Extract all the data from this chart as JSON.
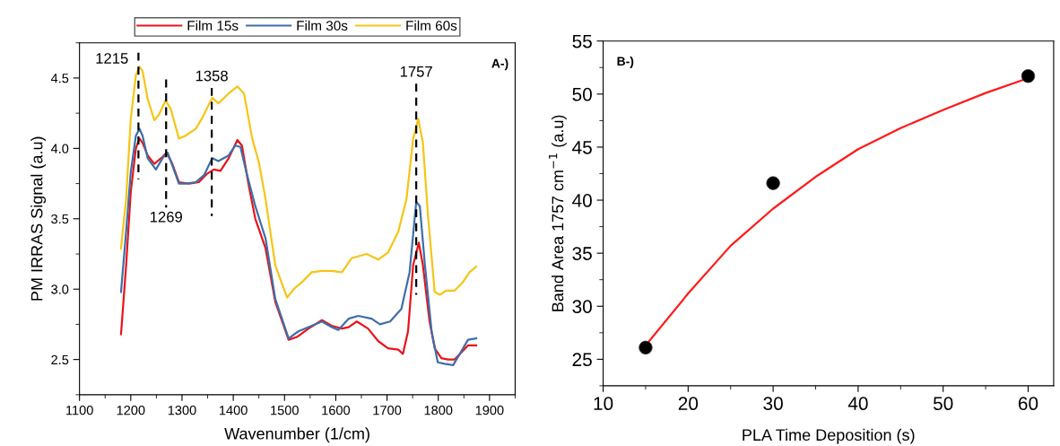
{
  "chart_data": [
    {
      "type": "line",
      "xlabel": "Wavenumber (1/cm)",
      "ylabel": "PM IRRAS Signal (a.u)",
      "xlim": [
        1100,
        1950
      ],
      "ylim": [
        2.25,
        4.75
      ],
      "xticks": [
        1100,
        1200,
        1300,
        1400,
        1500,
        1600,
        1700,
        1800,
        1900
      ],
      "yticks": [
        2.5,
        {
          "value": 3,
          "label": "3.0"
        },
        3.5,
        {
          "value": 4,
          "label": "4.0"
        },
        4.5
      ],
      "grid": false,
      "legend": "top",
      "marker": "none",
      "line_style": "solid",
      "annotations": [
        "A-)",
        {
          "text": "1215",
          "x": 1215,
          "y": 4.68
        },
        {
          "text": "1269",
          "x": 1269,
          "y": 3.58
        },
        {
          "text": "1358",
          "x": 1358,
          "y": 4.43
        },
        {
          "text": "1757",
          "x": 1757,
          "y": 4.46
        }
      ],
      "series": [
        {
          "name": "Film 15s",
          "color": "#e8141c",
          "x": [
            1181,
            1191,
            1200,
            1210,
            1217,
            1223,
            1233,
            1246,
            1262,
            1270,
            1281,
            1294,
            1314,
            1333,
            1349,
            1362,
            1375,
            1391,
            1408,
            1417,
            1430,
            1443,
            1463,
            1482,
            1508,
            1524,
            1547,
            1573,
            1592,
            1612,
            1625,
            1641,
            1663,
            1683,
            1702,
            1722,
            1731,
            1741,
            1751,
            1762,
            1770,
            1783,
            1793,
            1806,
            1819,
            1832,
            1845,
            1858,
            1874
          ],
          "values": [
            2.68,
            3.17,
            3.69,
            4.0,
            4.07,
            4.04,
            3.95,
            3.89,
            3.94,
            3.97,
            3.89,
            3.76,
            3.75,
            3.76,
            3.82,
            3.85,
            3.84,
            3.93,
            4.06,
            4.02,
            3.74,
            3.5,
            3.29,
            2.91,
            2.64,
            2.66,
            2.72,
            2.78,
            2.74,
            2.72,
            2.73,
            2.77,
            2.72,
            2.63,
            2.58,
            2.57,
            2.54,
            2.7,
            3.17,
            3.33,
            3.17,
            2.77,
            2.58,
            2.51,
            2.5,
            2.5,
            2.55,
            2.6,
            2.6
          ]
        },
        {
          "name": "Film 30s",
          "color": "#3e6fa8",
          "x": [
            1181,
            1191,
            1200,
            1210,
            1217,
            1223,
            1233,
            1249,
            1262,
            1272,
            1281,
            1294,
            1307,
            1327,
            1343,
            1359,
            1371,
            1391,
            1404,
            1414,
            1427,
            1443,
            1463,
            1482,
            1508,
            1527,
            1547,
            1573,
            1592,
            1605,
            1625,
            1644,
            1670,
            1686,
            1706,
            1728,
            1744,
            1757,
            1764,
            1774,
            1787,
            1799,
            1812,
            1829,
            1842,
            1858,
            1874
          ],
          "values": [
            2.98,
            3.41,
            3.83,
            4.09,
            4.14,
            4.09,
            3.93,
            3.85,
            3.93,
            3.97,
            3.88,
            3.75,
            3.75,
            3.76,
            3.81,
            3.93,
            3.91,
            3.95,
            4.02,
            4.01,
            3.81,
            3.59,
            3.36,
            2.93,
            2.65,
            2.7,
            2.73,
            2.77,
            2.73,
            2.71,
            2.79,
            2.81,
            2.79,
            2.75,
            2.77,
            2.86,
            3.12,
            3.62,
            3.59,
            3.17,
            2.7,
            2.48,
            2.47,
            2.46,
            2.54,
            2.64,
            2.65
          ]
        },
        {
          "name": "Film 60s",
          "color": "#f5c518",
          "x": [
            1181,
            1191,
            1200,
            1210,
            1217,
            1223,
            1233,
            1246,
            1255,
            1268,
            1278,
            1294,
            1307,
            1327,
            1340,
            1359,
            1371,
            1391,
            1408,
            1421,
            1437,
            1450,
            1463,
            1482,
            1505,
            1518,
            1534,
            1553,
            1573,
            1592,
            1612,
            1631,
            1660,
            1683,
            1702,
            1722,
            1738,
            1751,
            1761,
            1770,
            1780,
            1793,
            1803,
            1816,
            1832,
            1848,
            1861,
            1874
          ],
          "values": [
            3.29,
            3.64,
            4.21,
            4.52,
            4.58,
            4.55,
            4.35,
            4.2,
            4.24,
            4.34,
            4.28,
            4.07,
            4.09,
            4.14,
            4.22,
            4.36,
            4.32,
            4.39,
            4.44,
            4.39,
            4.07,
            3.9,
            3.64,
            3.17,
            2.94,
            3.0,
            3.05,
            3.12,
            3.13,
            3.13,
            3.12,
            3.22,
            3.25,
            3.21,
            3.26,
            3.41,
            3.64,
            4.07,
            4.21,
            4.04,
            3.52,
            2.98,
            2.96,
            2.99,
            2.99,
            3.05,
            3.12,
            3.16
          ]
        },
        {
          "color": "#000000",
          "line_style": "dashed",
          "x": [
            1215,
            1215
          ],
          "values": [
            4.68,
            3.78
          ]
        },
        {
          "color": "#000000",
          "line_style": "dashed",
          "x": [
            1269,
            1269
          ],
          "values": [
            4.49,
            3.58
          ]
        },
        {
          "color": "#000000",
          "line_style": "dashed",
          "x": [
            1358,
            1358
          ],
          "values": [
            4.43,
            3.52
          ]
        },
        {
          "color": "#000000",
          "line_style": "dashed",
          "x": [
            1757,
            1757
          ],
          "values": [
            4.46,
            2.96
          ]
        }
      ]
    },
    {
      "type": "line",
      "xlabel": "PLA Time Deposition (s)",
      "ylabel": "Band Area 1757 cm$^{−1}$ (a.u)",
      "xlim": [
        10,
        63
      ],
      "ylim": [
        22.5,
        55
      ],
      "xticks": [
        10,
        20,
        30,
        40,
        50,
        60
      ],
      "yticks": [
        25,
        30,
        35,
        40,
        45,
        50,
        55
      ],
      "grid": false,
      "legend": false,
      "annotations": [
        "B-)"
      ],
      "series": [
        {
          "type": "line",
          "color": "#ff1a1a",
          "marker": "none",
          "x": [
            15,
            20,
            25,
            30,
            35,
            40,
            45,
            50,
            55,
            60
          ],
          "values": [
            26.3,
            31.2,
            35.7,
            39.2,
            42.2,
            44.8,
            46.8,
            48.5,
            50.1,
            51.5
          ]
        },
        {
          "type": "scatter",
          "color": "#000000",
          "marker": "circle",
          "x": [
            15,
            30,
            60
          ],
          "values": [
            26.1,
            41.6,
            51.7
          ]
        }
      ]
    }
  ]
}
